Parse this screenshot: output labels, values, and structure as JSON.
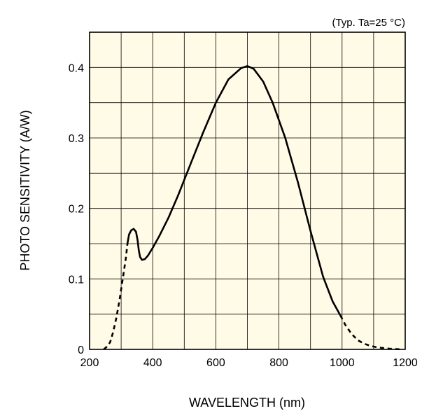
{
  "chart_data": {
    "type": "line",
    "title": "",
    "annotation": "(Typ. Ta=25 °C)",
    "xlabel": "WAVELENGTH (nm)",
    "ylabel": "PHOTO SENSITIVITY (A/W)",
    "xlim": [
      200,
      1200
    ],
    "ylim": [
      0,
      0.45
    ],
    "xticks": [
      200,
      400,
      600,
      800,
      1000,
      1200
    ],
    "xtick_labels": [
      "200",
      "400",
      "600",
      "800",
      "1000",
      "1200"
    ],
    "yticks": [
      0,
      0.1,
      0.2,
      0.3,
      0.4
    ],
    "ytick_labels": [
      "0",
      "0.1",
      "0.2",
      "0.3",
      "0.4"
    ],
    "grid": true,
    "x_minor_step": 100,
    "y_minor_step": 0.05,
    "background_color": "#fffbe6",
    "line_color": "#000000",
    "series": [
      {
        "style": "dashed",
        "x": [
          245,
          255,
          265,
          275,
          285,
          295,
          305,
          315,
          320
        ],
        "y": [
          0.0,
          0.004,
          0.01,
          0.025,
          0.045,
          0.07,
          0.1,
          0.13,
          0.15
        ]
      },
      {
        "style": "solid",
        "x": [
          320,
          325,
          332,
          340,
          347,
          352,
          356,
          360,
          366,
          375,
          385,
          400,
          420,
          450,
          480,
          520,
          560,
          600,
          640,
          680,
          700,
          720,
          750,
          780,
          820,
          860,
          900,
          940,
          970,
          985,
          995
        ],
        "y": [
          0.15,
          0.163,
          0.169,
          0.171,
          0.167,
          0.155,
          0.14,
          0.131,
          0.127,
          0.128,
          0.133,
          0.144,
          0.16,
          0.187,
          0.218,
          0.263,
          0.308,
          0.35,
          0.383,
          0.399,
          0.402,
          0.398,
          0.38,
          0.35,
          0.3,
          0.237,
          0.168,
          0.103,
          0.068,
          0.056,
          0.048
        ]
      },
      {
        "style": "dashed",
        "x": [
          995,
          1010,
          1030,
          1050,
          1070,
          1090,
          1110,
          1130,
          1150,
          1170,
          1190
        ],
        "y": [
          0.048,
          0.035,
          0.022,
          0.013,
          0.008,
          0.005,
          0.003,
          0.002,
          0.001,
          0.0005,
          0.0
        ]
      }
    ]
  }
}
